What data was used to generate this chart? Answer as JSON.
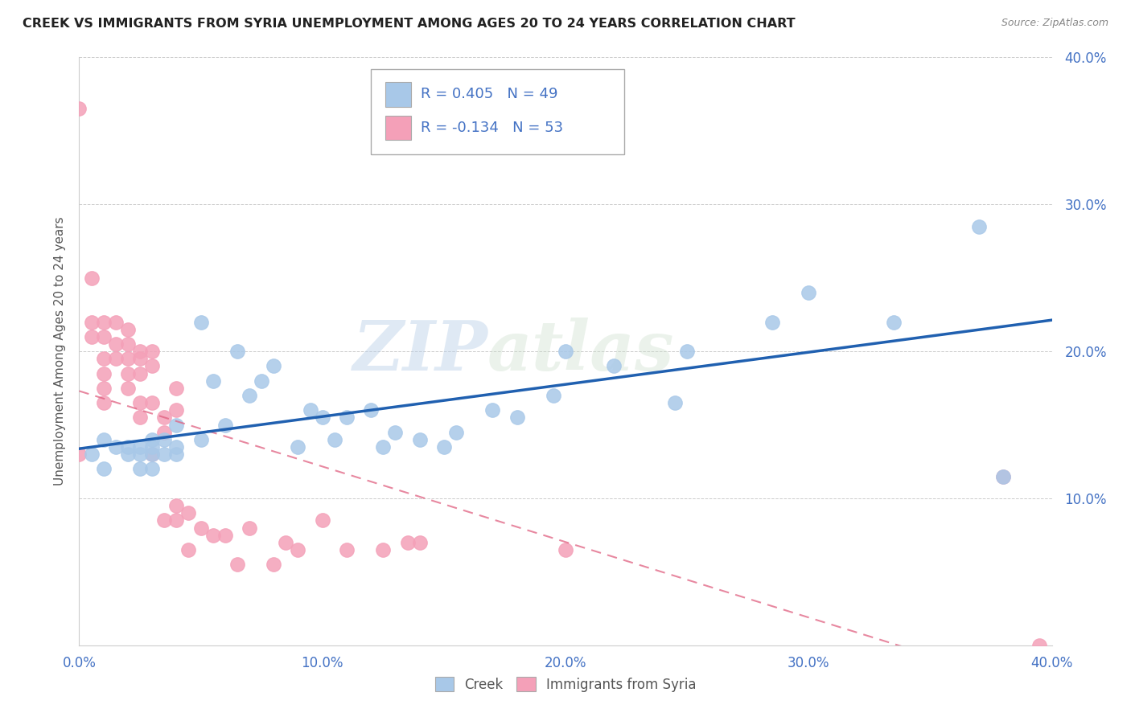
{
  "title": "CREEK VS IMMIGRANTS FROM SYRIA UNEMPLOYMENT AMONG AGES 20 TO 24 YEARS CORRELATION CHART",
  "source": "Source: ZipAtlas.com",
  "ylabel": "Unemployment Among Ages 20 to 24 years",
  "xlim": [
    0.0,
    0.4
  ],
  "ylim": [
    0.0,
    0.4
  ],
  "xticks": [
    0.0,
    0.1,
    0.2,
    0.3,
    0.4
  ],
  "yticks": [
    0.1,
    0.2,
    0.3,
    0.4
  ],
  "xticklabels": [
    "0.0%",
    "10.0%",
    "20.0%",
    "30.0%",
    "40.0%"
  ],
  "yticklabels": [
    "10.0%",
    "20.0%",
    "30.0%",
    "40.0%"
  ],
  "creek_color": "#a8c8e8",
  "syria_color": "#f4a0b8",
  "creek_R": 0.405,
  "creek_N": 49,
  "syria_R": -0.134,
  "syria_N": 53,
  "creek_line_color": "#2060b0",
  "syria_line_color": "#e06080",
  "watermark_zip": "ZIP",
  "watermark_atlas": "atlas",
  "legend_color": "#4472c4",
  "background_color": "#ffffff",
  "creek_x": [
    0.005,
    0.01,
    0.01,
    0.015,
    0.02,
    0.02,
    0.025,
    0.025,
    0.025,
    0.03,
    0.03,
    0.03,
    0.03,
    0.035,
    0.035,
    0.04,
    0.04,
    0.04,
    0.05,
    0.05,
    0.055,
    0.06,
    0.065,
    0.07,
    0.075,
    0.08,
    0.09,
    0.095,
    0.1,
    0.105,
    0.11,
    0.12,
    0.125,
    0.13,
    0.14,
    0.15,
    0.155,
    0.17,
    0.18,
    0.195,
    0.2,
    0.22,
    0.245,
    0.25,
    0.285,
    0.3,
    0.335,
    0.37,
    0.38
  ],
  "creek_y": [
    0.13,
    0.12,
    0.14,
    0.135,
    0.13,
    0.135,
    0.12,
    0.13,
    0.135,
    0.14,
    0.13,
    0.12,
    0.135,
    0.13,
    0.14,
    0.15,
    0.13,
    0.135,
    0.22,
    0.14,
    0.18,
    0.15,
    0.2,
    0.17,
    0.18,
    0.19,
    0.135,
    0.16,
    0.155,
    0.14,
    0.155,
    0.16,
    0.135,
    0.145,
    0.14,
    0.135,
    0.145,
    0.16,
    0.155,
    0.17,
    0.2,
    0.19,
    0.165,
    0.2,
    0.22,
    0.24,
    0.22,
    0.285,
    0.115
  ],
  "syria_x": [
    0.0,
    0.0,
    0.005,
    0.005,
    0.005,
    0.01,
    0.01,
    0.01,
    0.01,
    0.01,
    0.01,
    0.015,
    0.015,
    0.015,
    0.02,
    0.02,
    0.02,
    0.02,
    0.02,
    0.025,
    0.025,
    0.025,
    0.025,
    0.025,
    0.03,
    0.03,
    0.03,
    0.03,
    0.035,
    0.035,
    0.035,
    0.04,
    0.04,
    0.04,
    0.04,
    0.045,
    0.045,
    0.05,
    0.055,
    0.06,
    0.065,
    0.07,
    0.08,
    0.085,
    0.09,
    0.1,
    0.11,
    0.125,
    0.135,
    0.14,
    0.2,
    0.38,
    0.395
  ],
  "syria_y": [
    0.365,
    0.13,
    0.25,
    0.21,
    0.22,
    0.22,
    0.21,
    0.195,
    0.185,
    0.175,
    0.165,
    0.22,
    0.205,
    0.195,
    0.215,
    0.205,
    0.195,
    0.185,
    0.175,
    0.2,
    0.195,
    0.185,
    0.165,
    0.155,
    0.2,
    0.19,
    0.165,
    0.13,
    0.155,
    0.145,
    0.085,
    0.175,
    0.16,
    0.095,
    0.085,
    0.09,
    0.065,
    0.08,
    0.075,
    0.075,
    0.055,
    0.08,
    0.055,
    0.07,
    0.065,
    0.085,
    0.065,
    0.065,
    0.07,
    0.07,
    0.065,
    0.115,
    0.0
  ]
}
